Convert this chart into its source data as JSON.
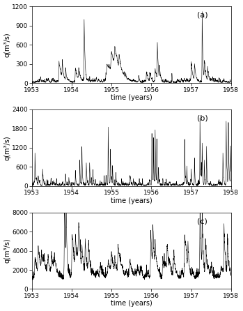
{
  "title_a": "(a)",
  "title_b": "(b)",
  "title_c": "(c)",
  "xlabel": "time (years)",
  "ylabel": "q(m³/s)",
  "xlim": [
    1953,
    1958
  ],
  "xticks": [
    1953,
    1954,
    1955,
    1956,
    1957,
    1958
  ],
  "xticklabels": [
    "1953",
    "1954",
    "1955",
    "1956",
    "1957",
    "1958"
  ],
  "ylim_a": [
    0,
    1200
  ],
  "yticks_a": [
    0,
    300,
    600,
    900,
    1200
  ],
  "ylim_b": [
    0,
    2400
  ],
  "yticks_b": [
    0,
    600,
    1200,
    1800,
    2400
  ],
  "ylim_c": [
    0,
    8000
  ],
  "yticks_c": [
    0,
    2000,
    4000,
    6000,
    8000
  ],
  "line_color": "#000000",
  "line_width": 0.4,
  "bg_color": "#ffffff",
  "fig_width": 3.49,
  "fig_height": 4.46,
  "dpi": 100,
  "label_fontsize": 7,
  "tick_fontsize": 6.5,
  "annotation_fontsize": 8,
  "start_year": 1953,
  "n_days": 1826
}
